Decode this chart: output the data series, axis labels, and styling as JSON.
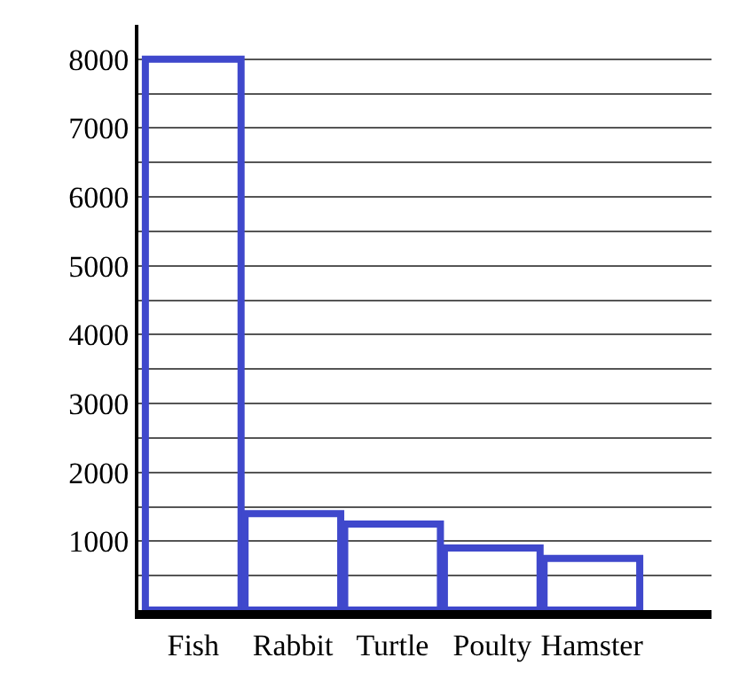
{
  "chart_data": {
    "type": "bar",
    "categories": [
      "Fish",
      "Rabbit",
      "Turtle",
      "Poulty",
      "Hamster"
    ],
    "values": [
      8000,
      1400,
      1250,
      900,
      750
    ],
    "color": "#3f48cc",
    "ylim": [
      0,
      8500
    ],
    "yticks": [
      {
        "value": 500,
        "label": null
      },
      1000,
      {
        "value": 1500,
        "label": null
      },
      2000,
      {
        "value": 2500,
        "label": null
      },
      3000,
      {
        "value": 3500,
        "label": null
      },
      4000,
      {
        "value": 4500,
        "label": null
      },
      5000,
      {
        "value": 5500,
        "label": null
      },
      6000,
      {
        "value": 6500,
        "label": null
      },
      7000,
      {
        "value": 7500,
        "label": null
      },
      8000
    ],
    "grid": "y"
  }
}
